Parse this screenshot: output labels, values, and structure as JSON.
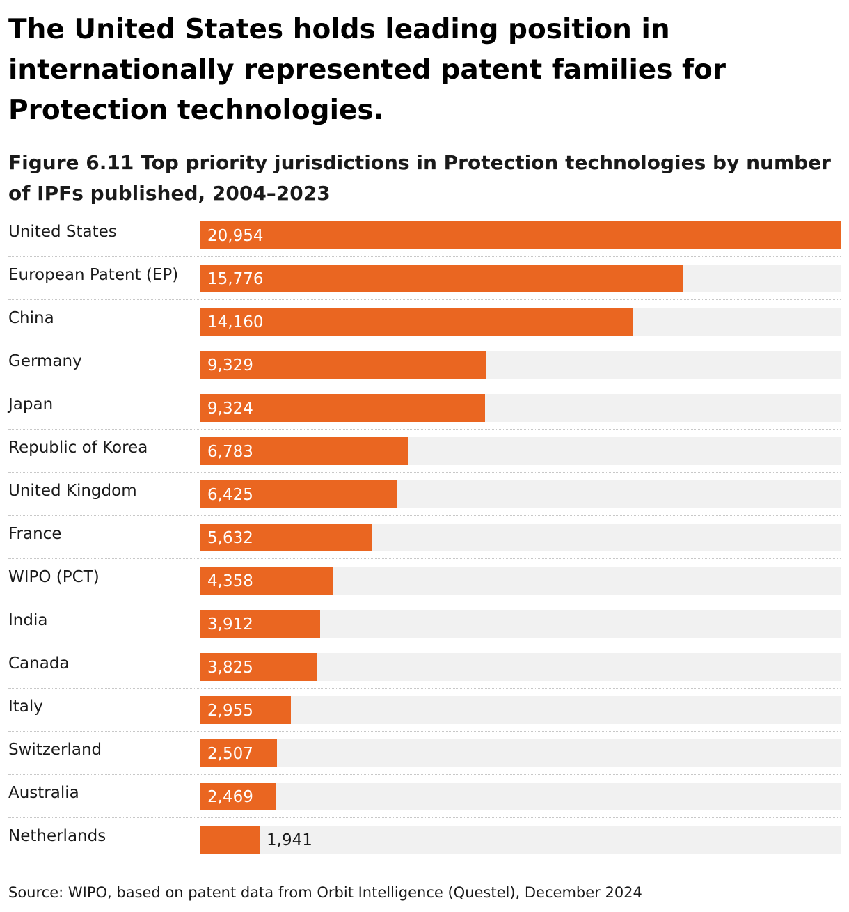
{
  "headline": "The United States holds leading position in internationally represented patent families for Protection technologies.",
  "chart_data": {
    "type": "bar",
    "orientation": "horizontal",
    "title": "Figure 6.11 Top priority jurisdictions in Protection technologies by number of IPFs published, 2004–2023",
    "categories": [
      "United States",
      "European Patent (EP)",
      "China",
      "Germany",
      "Japan",
      "Republic of Korea",
      "United Kingdom",
      "France",
      "WIPO (PCT)",
      "India",
      "Canada",
      "Italy",
      "Switzerland",
      "Australia",
      "Netherlands"
    ],
    "values": [
      20954,
      15776,
      14160,
      9329,
      9324,
      6783,
      6425,
      5632,
      4358,
      3912,
      3825,
      2955,
      2507,
      2469,
      1941
    ],
    "value_labels": [
      "20,954",
      "15,776",
      "14,160",
      "9,329",
      "9,324",
      "6,783",
      "6,425",
      "5,632",
      "4,358",
      "3,912",
      "3,825",
      "2,955",
      "2,507",
      "2,469",
      "1,941"
    ],
    "xlim": [
      0,
      20954
    ],
    "xlabel": "",
    "ylabel": "",
    "bar_color": "#ea6621",
    "track_color": "#f1f1f1"
  },
  "source": "Source: WIPO, based on patent data from Orbit Intelligence (Questel), December 2024"
}
